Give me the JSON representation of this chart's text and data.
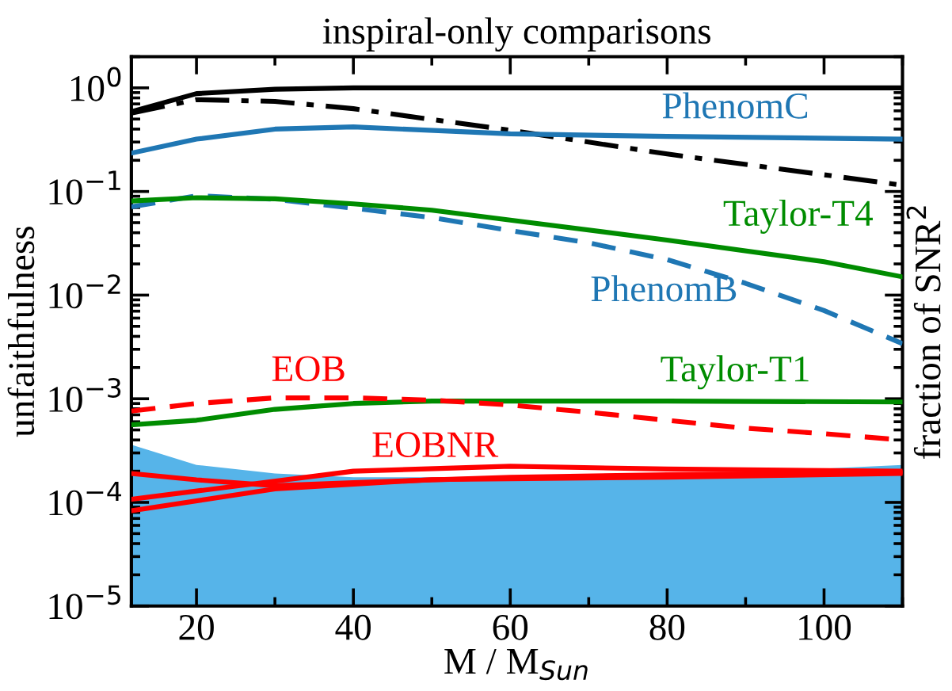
{
  "chart_data": {
    "type": "line",
    "title": "inspiral-only comparisons",
    "xlabel": "M / M$_{Sun}$",
    "ylabel": "unfaithfulness",
    "y2label": "fraction of SNR$^{2}$",
    "log": "y",
    "xlim": [
      11.7,
      110
    ],
    "ylim": [
      1e-05,
      2
    ],
    "xticks": [
      20,
      40,
      60,
      80,
      100
    ],
    "yticks": [
      {
        "value": 1e-05,
        "label": "10$^{−5}$"
      },
      {
        "value": 0.0001,
        "label": "10$^{−4}$"
      },
      {
        "value": 0.001,
        "label": "10$^{−3}$"
      },
      {
        "value": 0.01,
        "label": "10$^{−2}$"
      },
      {
        "value": 0.1,
        "label": "10$^{−1}$"
      },
      {
        "value": 1,
        "label": "10$^{0}$"
      }
    ],
    "grid": false,
    "legend": false,
    "series": [
      {
        "type": "area",
        "color": "#56b4e9",
        "x": [
          11.7,
          20,
          30,
          40,
          60,
          80,
          110
        ],
        "values": [
          0.00036,
          0.00023,
          0.00019,
          0.000175,
          0.000175,
          0.00018,
          0.00023
        ]
      },
      {
        "color": "#000000",
        "line_style": "solid",
        "x": [
          11.7,
          20,
          30,
          40,
          60,
          80,
          110
        ],
        "values": [
          0.59,
          0.88,
          0.97,
          1.0,
          1.0,
          1.0,
          1.0
        ]
      },
      {
        "color": "#000000",
        "line_style": "dashdot",
        "x": [
          11.7,
          20,
          30,
          40,
          60,
          80,
          110
        ],
        "values": [
          0.57,
          0.77,
          0.74,
          0.63,
          0.39,
          0.23,
          0.115
        ]
      },
      {
        "name": "PhenomC",
        "color": "#1f77b4",
        "line_style": "solid",
        "x": [
          11.7,
          20,
          30,
          40,
          60,
          80,
          110
        ],
        "values": [
          0.235,
          0.32,
          0.4,
          0.42,
          0.36,
          0.34,
          0.32
        ]
      },
      {
        "name": "PhenomB",
        "color": "#1f77b4",
        "line_style": "dashed",
        "x": [
          11.7,
          20,
          30,
          40,
          50,
          60,
          70,
          80,
          90,
          100,
          110
        ],
        "values": [
          0.071,
          0.091,
          0.084,
          0.069,
          0.056,
          0.042,
          0.032,
          0.022,
          0.013,
          0.0071,
          0.0034
        ]
      },
      {
        "name": "Taylor-T4",
        "color": "#008c00",
        "line_style": "solid",
        "x": [
          11.7,
          20,
          30,
          40,
          50,
          60,
          80,
          100,
          110
        ],
        "values": [
          0.081,
          0.087,
          0.085,
          0.076,
          0.066,
          0.053,
          0.034,
          0.021,
          0.015
        ]
      },
      {
        "name": "Taylor-T1",
        "color": "#008c00",
        "line_style": "solid",
        "x": [
          11.7,
          20,
          30,
          40,
          50,
          60,
          80,
          110
        ],
        "values": [
          0.00056,
          0.00062,
          0.00079,
          0.0009,
          0.00095,
          0.00095,
          0.00095,
          0.00093
        ]
      },
      {
        "name": "EOB",
        "color": "#ff0000",
        "line_style": "dashed",
        "x": [
          11.7,
          20,
          30,
          40,
          50,
          60,
          70,
          80,
          90,
          100,
          110
        ],
        "values": [
          0.00076,
          0.0009,
          0.00102,
          0.00102,
          0.00097,
          0.00087,
          0.00074,
          0.00062,
          0.00052,
          0.00046,
          0.0004
        ]
      },
      {
        "name": "EOBNR",
        "color": "#ff0000",
        "line_style": "solid",
        "x": [
          11.7,
          40,
          60,
          80,
          110
        ],
        "values": [
          0.000107,
          0.0002,
          0.000223,
          0.00021,
          0.0002
        ]
      },
      {
        "color": "#ff0000",
        "line_style": "solid",
        "x": [
          11.7,
          20,
          30,
          40,
          60,
          80,
          110
        ],
        "values": [
          0.00019,
          0.000165,
          0.000145,
          0.000155,
          0.000175,
          0.000185,
          0.000195
        ]
      },
      {
        "color": "#ff0000",
        "line_style": "solid",
        "x": [
          11.7,
          30,
          50,
          80,
          110
        ],
        "values": [
          8.3e-05,
          0.000135,
          0.000166,
          0.000175,
          0.00019
        ]
      }
    ]
  }
}
